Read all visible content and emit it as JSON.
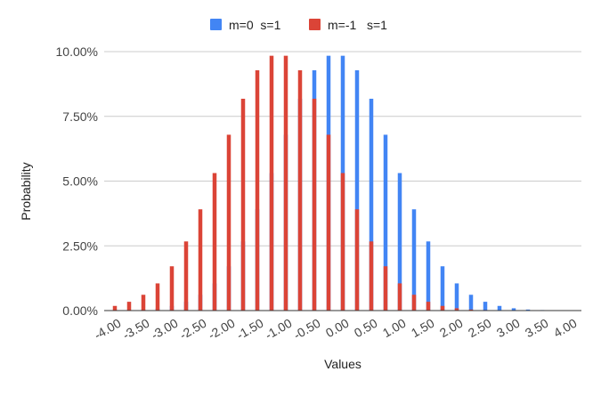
{
  "chart_data": {
    "type": "bar",
    "title": "",
    "xlabel": "Values",
    "ylabel": "Probability",
    "ylim": [
      0,
      0.1
    ],
    "yticks": [
      0,
      0.025,
      0.05,
      0.075,
      0.1
    ],
    "ytick_labels": [
      "0.00%",
      "2.50%",
      "5.00%",
      "7.50%",
      "10.00%"
    ],
    "xrange": [
      -4.0,
      4.0
    ],
    "xticks": [
      -4.0,
      -3.5,
      -3.0,
      -2.5,
      -2.0,
      -1.5,
      -1.0,
      -0.5,
      0.0,
      0.5,
      1.0,
      1.5,
      2.0,
      2.5,
      3.0,
      3.5,
      4.0
    ],
    "xtick_labels": [
      "-4.00",
      "-3.50",
      "-3.00",
      "-2.50",
      "-2.00",
      "-1.50",
      "-1.00",
      "-0.50",
      "0.00",
      "0.50",
      "1.00",
      "1.50",
      "2.00",
      "2.50",
      "3.00",
      "3.50",
      "4.00"
    ],
    "grid": true,
    "legend_position": "top",
    "series": [
      {
        "name": "m=0  s=1",
        "color": "#4285F4",
        "x": [
          -3.75,
          -3.5,
          -3.25,
          -3.0,
          -2.75,
          -2.5,
          -2.25,
          -2.0,
          -1.75,
          -1.5,
          -1.25,
          -1.0,
          -0.75,
          -0.5,
          -0.25,
          0.0,
          0.25,
          0.5,
          0.75,
          1.0,
          1.25,
          1.5,
          1.75,
          2.0,
          2.25,
          2.5,
          2.75,
          3.0,
          3.25,
          3.5
        ],
        "values": [
          0.0002,
          0.0004,
          0.0009,
          0.0018,
          0.0034,
          0.0061,
          0.0105,
          0.0171,
          0.0267,
          0.0391,
          0.0531,
          0.0679,
          0.0818,
          0.0928,
          0.0984,
          0.0984,
          0.0928,
          0.0818,
          0.0679,
          0.0531,
          0.0391,
          0.0267,
          0.0171,
          0.0105,
          0.0061,
          0.0034,
          0.0018,
          0.0009,
          0.0004,
          0.0002
        ]
      },
      {
        "name": "m=-1   s=1",
        "color": "#DB4437",
        "x": [
          -4.0,
          -3.75,
          -3.5,
          -3.25,
          -3.0,
          -2.75,
          -2.5,
          -2.25,
          -2.0,
          -1.75,
          -1.5,
          -1.25,
          -1.0,
          -0.75,
          -0.5,
          -0.25,
          0.0,
          0.25,
          0.5,
          0.75,
          1.0,
          1.25,
          1.5,
          1.75,
          2.0,
          2.25,
          2.5
        ],
        "values": [
          0.0018,
          0.0034,
          0.0061,
          0.0105,
          0.0171,
          0.0267,
          0.0391,
          0.0531,
          0.0679,
          0.0818,
          0.0928,
          0.0984,
          0.0984,
          0.0928,
          0.0818,
          0.0679,
          0.0531,
          0.0391,
          0.0267,
          0.0171,
          0.0105,
          0.0061,
          0.0034,
          0.0018,
          0.0009,
          0.0004,
          0.0002
        ]
      }
    ]
  }
}
